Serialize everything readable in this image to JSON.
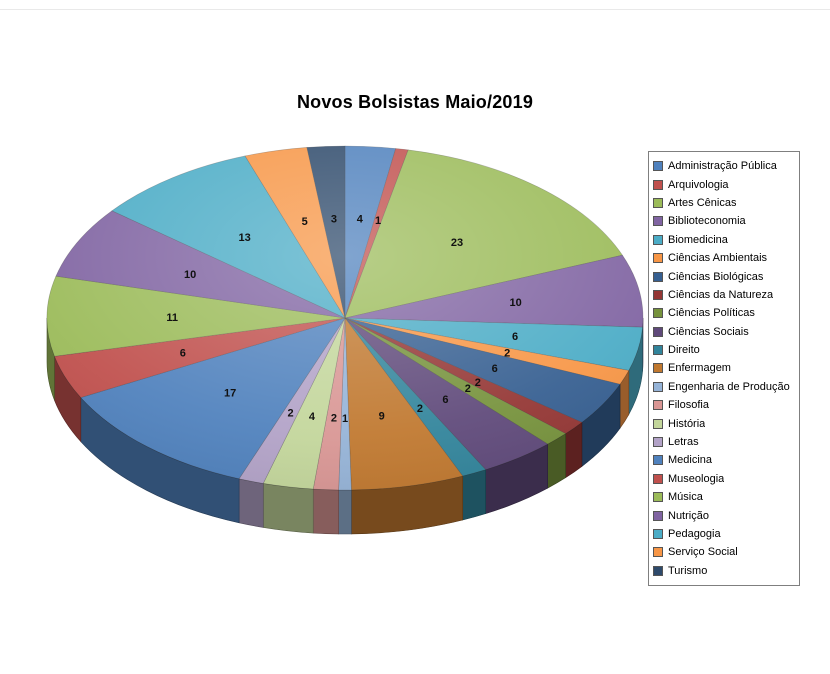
{
  "chart_data": {
    "type": "pie",
    "style": "3d-pie",
    "title": "Novos Bolsistas Maio/2019",
    "legend_position": "right",
    "data_labels": "values",
    "total": 147,
    "categories": [
      "Administração Pública",
      "Arquivologia",
      "Artes Cênicas",
      "Biblioteconomia",
      "Biomedicina",
      "Ciências Ambientais",
      "Ciências Biológicas",
      "Ciências da Natureza",
      "Ciências Políticas",
      "Ciências Sociais",
      "Direito",
      "Enfermagem",
      "Engenharia de Produção",
      "Filosofia",
      "História",
      "Letras",
      "Medicina",
      "Museologia",
      "Música",
      "Nutrição",
      "Pedagogia",
      "Serviço Social",
      "Turismo"
    ],
    "values": [
      4,
      1,
      23,
      10,
      6,
      2,
      6,
      2,
      2,
      6,
      2,
      9,
      1,
      2,
      4,
      2,
      17,
      6,
      11,
      10,
      13,
      5,
      3
    ],
    "colors": [
      "#4F81BD",
      "#C0504D",
      "#9BBB59",
      "#8064A2",
      "#4BACC6",
      "#F79646",
      "#365F91",
      "#943634",
      "#76923C",
      "#5F497A",
      "#31849B",
      "#C0782F",
      "#95B3D7",
      "#D99694",
      "#C3D69B",
      "#B2A2C7",
      "#4F81BD",
      "#C0504D",
      "#9BBB59",
      "#8064A2",
      "#4BACC6",
      "#F79646",
      "#2E4A6B"
    ]
  }
}
